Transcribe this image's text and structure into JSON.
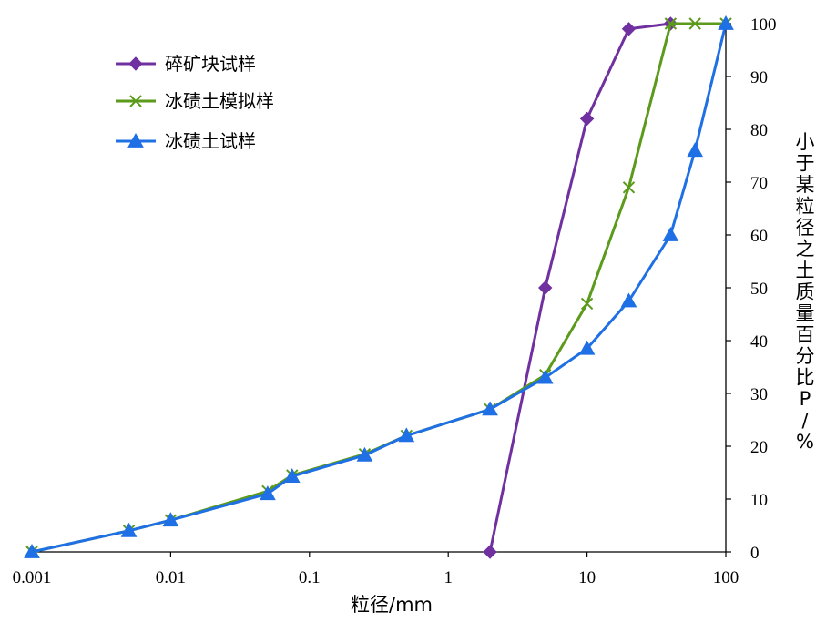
{
  "chart_data": {
    "type": "line",
    "xscale": "log",
    "xlim": [
      0.001,
      100
    ],
    "ylim": [
      0,
      100
    ],
    "xticks": [
      "0.001",
      "0.01",
      "0.1",
      "1",
      "10",
      "100"
    ],
    "yticks": [
      "0",
      "10",
      "20",
      "30",
      "40",
      "50",
      "60",
      "70",
      "80",
      "90",
      "100"
    ],
    "xlabel": "粒径/mm",
    "ylabel": "小于某粒径之土质量百分比P/%",
    "yaxis_position": "right",
    "grid": false,
    "legend_position": "top-left",
    "series": [
      {
        "name": "碎矿块试样",
        "color": "#7030A0",
        "marker": "diamond",
        "x": [
          2,
          5,
          10,
          20,
          40
        ],
        "y": [
          0,
          50,
          82,
          99,
          100
        ]
      },
      {
        "name": "冰碛土模拟样",
        "color": "#5B9A1A",
        "marker": "x",
        "x": [
          0.001,
          0.005,
          0.01,
          0.05,
          0.075,
          0.25,
          0.5,
          2,
          5,
          10,
          20,
          40,
          60,
          100
        ],
        "y": [
          0,
          4,
          6,
          11.5,
          14.5,
          18.5,
          22,
          27,
          33.5,
          47,
          69,
          100,
          100,
          100
        ]
      },
      {
        "name": "冰碛土试样",
        "color": "#1F6FE5",
        "marker": "triangle",
        "x": [
          0.001,
          0.005,
          0.01,
          0.05,
          0.075,
          0.25,
          0.5,
          2,
          5,
          10,
          20,
          40,
          60,
          100
        ],
        "y": [
          0,
          4,
          6,
          11,
          14.3,
          18.3,
          22,
          27,
          33,
          38.5,
          47.5,
          60,
          76,
          100
        ]
      }
    ]
  }
}
